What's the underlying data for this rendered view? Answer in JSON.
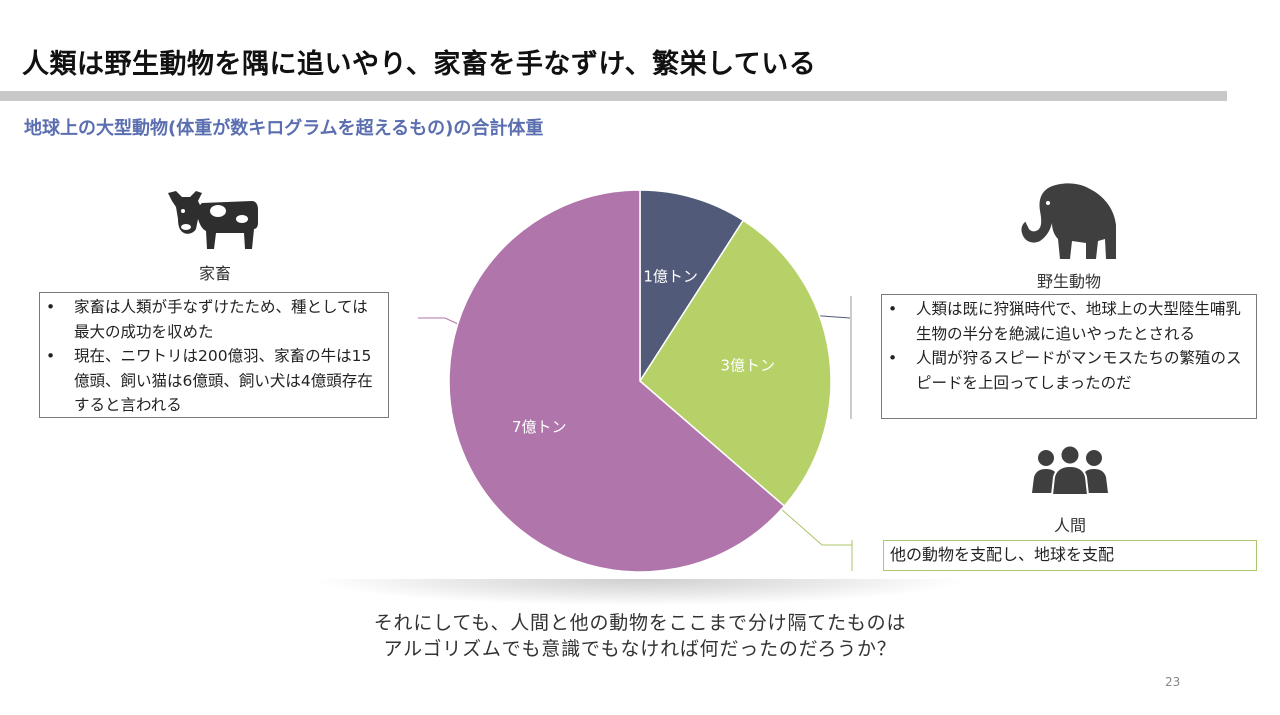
{
  "title": "人類は野生動物を隅に追いやり、家畜を手なずけ、繁栄している",
  "subtitle": "地球上の大型動物(体重が数キログラムを超えるもの)の合計体重",
  "livestock": {
    "icon": "cow-icon",
    "label": "家畜",
    "bullets": [
      "家畜は人類が手なずけたため、種としては最大の成功を収めた",
      "現在、ニワトリは200億羽、家畜の牛は15億頭、飼い猫は6億頭、飼い犬は4億頭存在すると言われる"
    ]
  },
  "wildlife": {
    "icon": "mammoth-icon",
    "label": "野生動物",
    "bullets": [
      "人類は既に狩猟時代で、地球上の大型陸生哺乳生物の半分を絶滅に追いやったとされる",
      "人間が狩るスピードがマンモスたちの繁殖のスピードを上回ってしまったのだ"
    ]
  },
  "humans": {
    "icon": "people-group-icon",
    "label": "人間",
    "note": "他の動物を支配し、地球を支配"
  },
  "chart_data": {
    "type": "pie",
    "title": "地球上の大型動物(体重が数キログラムを超えるもの)の合計体重",
    "slices": [
      {
        "label": "1億トン",
        "value": 1,
        "color": "#515a78"
      },
      {
        "label": "3億トン",
        "value": 3,
        "color": "#b5d167"
      },
      {
        "label": "7億トン",
        "value": 7,
        "color": "#b075ab"
      }
    ],
    "start_angle_deg": 0,
    "direction": "clockwise"
  },
  "bottom_text": {
    "line1": "それにしても、人間と他の動物をここまで分け隔てたものは",
    "line2": "アルゴリズムでも意識でもなければ何だったのだろうか？"
  },
  "page_number": "23"
}
